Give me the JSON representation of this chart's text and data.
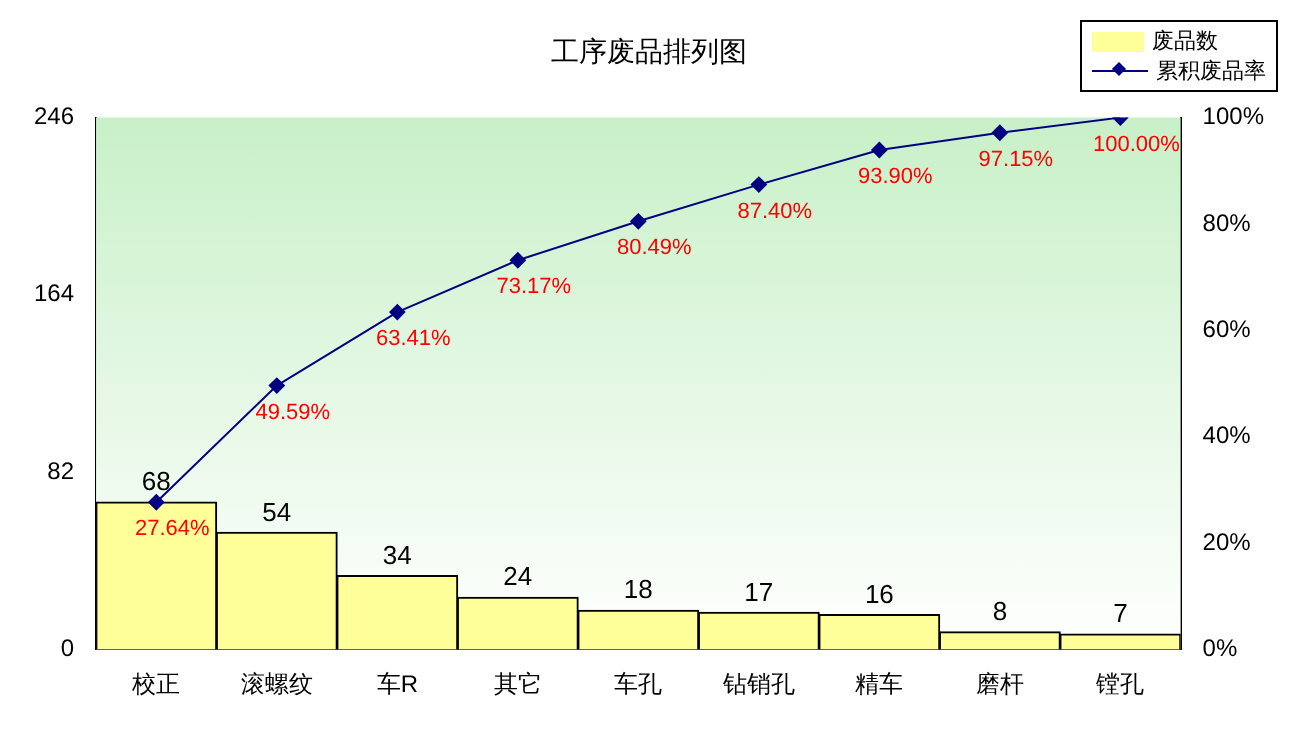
{
  "chart_data": {
    "type": "bar",
    "title": "工序废品排列图",
    "categories": [
      "校正",
      "滚螺纹",
      "车R",
      "其它",
      "车孔",
      "钻销孔",
      "精车",
      "磨杆",
      "镗孔"
    ],
    "series": [
      {
        "name": "废品数",
        "color": "#ffff99",
        "values": [
          68,
          54,
          34,
          24,
          18,
          17,
          16,
          8,
          7
        ],
        "value_labels": [
          "68",
          "54",
          "34",
          "24",
          "18",
          "17",
          "16",
          "8",
          "7"
        ]
      },
      {
        "name": "累积废品率",
        "type": "line",
        "axis": "y2",
        "color": "#000080",
        "marker": "diamond",
        "values": [
          27.64,
          49.59,
          63.41,
          73.17,
          80.49,
          87.4,
          93.9,
          97.15,
          100.0
        ],
        "value_labels": [
          "27.64%",
          "49.59%",
          "63.41%",
          "73.17%",
          "80.49%",
          "87.40%",
          "93.90%",
          "97.15%",
          "100.00%"
        ]
      }
    ],
    "ylim": [
      0,
      246
    ],
    "yticks": [
      0,
      82,
      164,
      246
    ],
    "y2lim": [
      0,
      100
    ],
    "y2ticks": [
      {
        "value": 0,
        "label": "0%"
      },
      {
        "value": 20,
        "label": "20%"
      },
      {
        "value": 40,
        "label": "40%"
      },
      {
        "value": 60,
        "label": "60%"
      },
      {
        "value": 80,
        "label": "80%"
      },
      {
        "value": 100,
        "label": "100%"
      }
    ],
    "legend": "top right",
    "grid": false
  }
}
